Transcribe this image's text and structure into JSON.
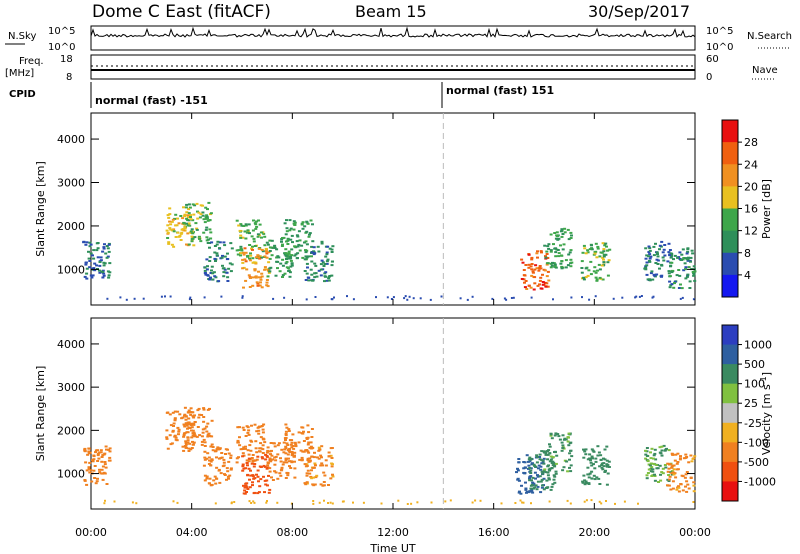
{
  "header": {
    "title": "Dome C East (fitACF)",
    "beam": "Beam 15",
    "date": "30/Sep/2017"
  },
  "status_panels": {
    "nsky_label": "N.Sky",
    "nsky_ticks": [
      "10^5",
      "10^0"
    ],
    "nsearch_label": "N.Search",
    "nsearch_ticks": [
      "10^5",
      "10^0"
    ],
    "freq_label_1": "Freq.",
    "freq_label_2": "[MHz]",
    "freq_ticks": [
      "18",
      "8"
    ],
    "nave_label": "Nave",
    "nave_ticks": [
      "60",
      "0"
    ],
    "cpid_label": "CPID",
    "cpid_segments": [
      {
        "label": "normal (fast) -151"
      },
      {
        "label": "normal (fast) 151"
      }
    ]
  },
  "x_axis": {
    "label": "Time UT",
    "tick_labels": [
      "00:00",
      "04:00",
      "08:00",
      "12:00",
      "16:00",
      "20:00",
      "00:00"
    ],
    "range_hours": [
      0,
      24
    ],
    "mode_change_hour": 14.0
  },
  "chart_data": [
    {
      "type": "heatmap",
      "ylabel": "Slant Range [km]",
      "ylim": [
        180,
        4600
      ],
      "y_ticks": [
        1000,
        2000,
        3000,
        4000
      ],
      "xlim": [
        0,
        24
      ],
      "colorbar": {
        "label": "Power [dB]",
        "tick_labels": [
          "4",
          "8",
          "12",
          "16",
          "20",
          "24",
          "28"
        ],
        "range": [
          0,
          32
        ],
        "colors": [
          "#1418f0",
          "#2a4cb0",
          "#2e8f5a",
          "#3ea64a",
          "#e8c020",
          "#f09020",
          "#f06010",
          "#e81010"
        ]
      },
      "regions": [
        {
          "t": 0.2,
          "r": 1200,
          "v": 8
        },
        {
          "t": 3.5,
          "r": 2000,
          "v": 18
        },
        {
          "t": 4.2,
          "r": 2100,
          "v": 14
        },
        {
          "t": 5.0,
          "r": 1200,
          "v": 9
        },
        {
          "t": 6.3,
          "r": 1700,
          "v": 14
        },
        {
          "t": 6.5,
          "r": 1050,
          "v": 22
        },
        {
          "t": 7.5,
          "r": 1300,
          "v": 12
        },
        {
          "t": 8.2,
          "r": 1700,
          "v": 11
        },
        {
          "t": 9.0,
          "r": 1200,
          "v": 9
        },
        {
          "t": 17.6,
          "r": 1000,
          "v": 26
        },
        {
          "t": 18.5,
          "r": 1500,
          "v": 12
        },
        {
          "t": 20.0,
          "r": 1200,
          "v": 14
        },
        {
          "t": 22.5,
          "r": 1200,
          "v": 8
        },
        {
          "t": 23.4,
          "r": 1050,
          "v": 10
        }
      ]
    },
    {
      "type": "heatmap",
      "ylabel": "Slant Range [km]",
      "ylim": [
        180,
        4600
      ],
      "y_ticks": [
        1000,
        2000,
        3000,
        4000
      ],
      "xlim": [
        0,
        24
      ],
      "colorbar": {
        "label": "Velocity [m s^-1]",
        "tick_labels": [
          "1000",
          "500",
          "100",
          "25",
          "-25",
          "-100",
          "-500",
          "-1000"
        ],
        "colors": [
          "#2c3ec0",
          "#2e5fa0",
          "#3a8a60",
          "#80c040",
          "#c0c0c0",
          "#f0b020",
          "#f08020",
          "#f05010",
          "#e81010"
        ]
      },
      "regions": [
        {
          "t": 0.2,
          "r": 1200,
          "v": -200
        },
        {
          "t": 3.5,
          "r": 2000,
          "v": -300
        },
        {
          "t": 4.2,
          "r": 2100,
          "v": -200
        },
        {
          "t": 5.0,
          "r": 1200,
          "v": -200
        },
        {
          "t": 6.3,
          "r": 1700,
          "v": -250
        },
        {
          "t": 6.5,
          "r": 1000,
          "v": -700
        },
        {
          "t": 7.5,
          "r": 1300,
          "v": -300
        },
        {
          "t": 8.2,
          "r": 1700,
          "v": -200
        },
        {
          "t": 9.0,
          "r": 1200,
          "v": -150
        },
        {
          "t": 17.4,
          "r": 1000,
          "v": 800
        },
        {
          "t": 17.9,
          "r": 1100,
          "v": 200
        },
        {
          "t": 18.5,
          "r": 1500,
          "v": 150
        },
        {
          "t": 20.0,
          "r": 1200,
          "v": 200
        },
        {
          "t": 22.5,
          "r": 1200,
          "v": 120
        },
        {
          "t": 23.4,
          "r": 1050,
          "v": -150
        }
      ]
    }
  ]
}
